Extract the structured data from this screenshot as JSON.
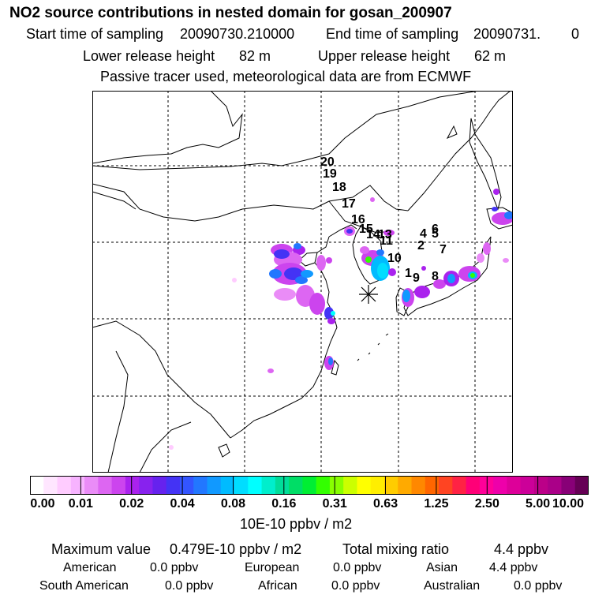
{
  "title": "NO2 source contributions in nested domain for gosan_200907",
  "header": {
    "start_label": "Start time of sampling",
    "start_value": "20090730.210000",
    "end_label": "End time of sampling",
    "end_value": "20090731.",
    "end_suffix": "0",
    "lower_label": "Lower release height",
    "lower_value": "82 m",
    "upper_label": "Upper release height",
    "upper_value": "62 m",
    "note": "Passive tracer used, meteorological data are from ECMWF"
  },
  "map": {
    "trajectory_labels": [
      "20",
      "19",
      "18",
      "17",
      "16",
      "15",
      "14",
      "13",
      "11",
      "10",
      "1",
      "9",
      "8",
      "2",
      "4",
      "5",
      "6",
      "7"
    ],
    "receptor_symbol": "asterisk-receptor"
  },
  "colorbar": {
    "tick_labels": [
      "0.00",
      "0.01",
      "0.02",
      "0.04",
      "0.08",
      "0.16",
      "0.31",
      "0.63",
      "1.25",
      "2.50",
      "5.00",
      "10.00"
    ],
    "units": "10E-10 ppbv / m2",
    "colors": [
      "#ffffff",
      "#ffe6ff",
      "#ffccff",
      "#f7b3ff",
      "#ea8cf7",
      "#dd66f2",
      "#cc44ee",
      "#aa22ee",
      "#8822ee",
      "#6622ee",
      "#4433f5",
      "#3355ff",
      "#2277ff",
      "#1199ff",
      "#00bbff",
      "#00ddff",
      "#00ffff",
      "#00eecc",
      "#00dd99",
      "#00dd66",
      "#00ee33",
      "#33ff00",
      "#88ff00",
      "#ccff00",
      "#ffff00",
      "#ffee00",
      "#ffcc00",
      "#ffaa00",
      "#ff8800",
      "#ff6600",
      "#ff4422",
      "#ff2244",
      "#ff0077",
      "#ff0099",
      "#ee00aa",
      "#dd0099",
      "#cc0099",
      "#bb0088",
      "#aa0088",
      "#880077",
      "#660055"
    ]
  },
  "stats": {
    "max_label": "Maximum value",
    "max_value": "0.479E-10 ppbv / m2",
    "total_label": "Total mixing ratio",
    "total_value": "4.4 ppbv",
    "regions": [
      {
        "name": "American",
        "value": "0.0 ppbv"
      },
      {
        "name": "European",
        "value": "0.0 ppbv"
      },
      {
        "name": "Asian",
        "value": "4.4 ppbv"
      },
      {
        "name": "South American",
        "value": "0.0 ppbv"
      },
      {
        "name": "African",
        "value": "0.0 ppbv"
      },
      {
        "name": "Australian",
        "value": "0.0 ppbv"
      }
    ]
  }
}
